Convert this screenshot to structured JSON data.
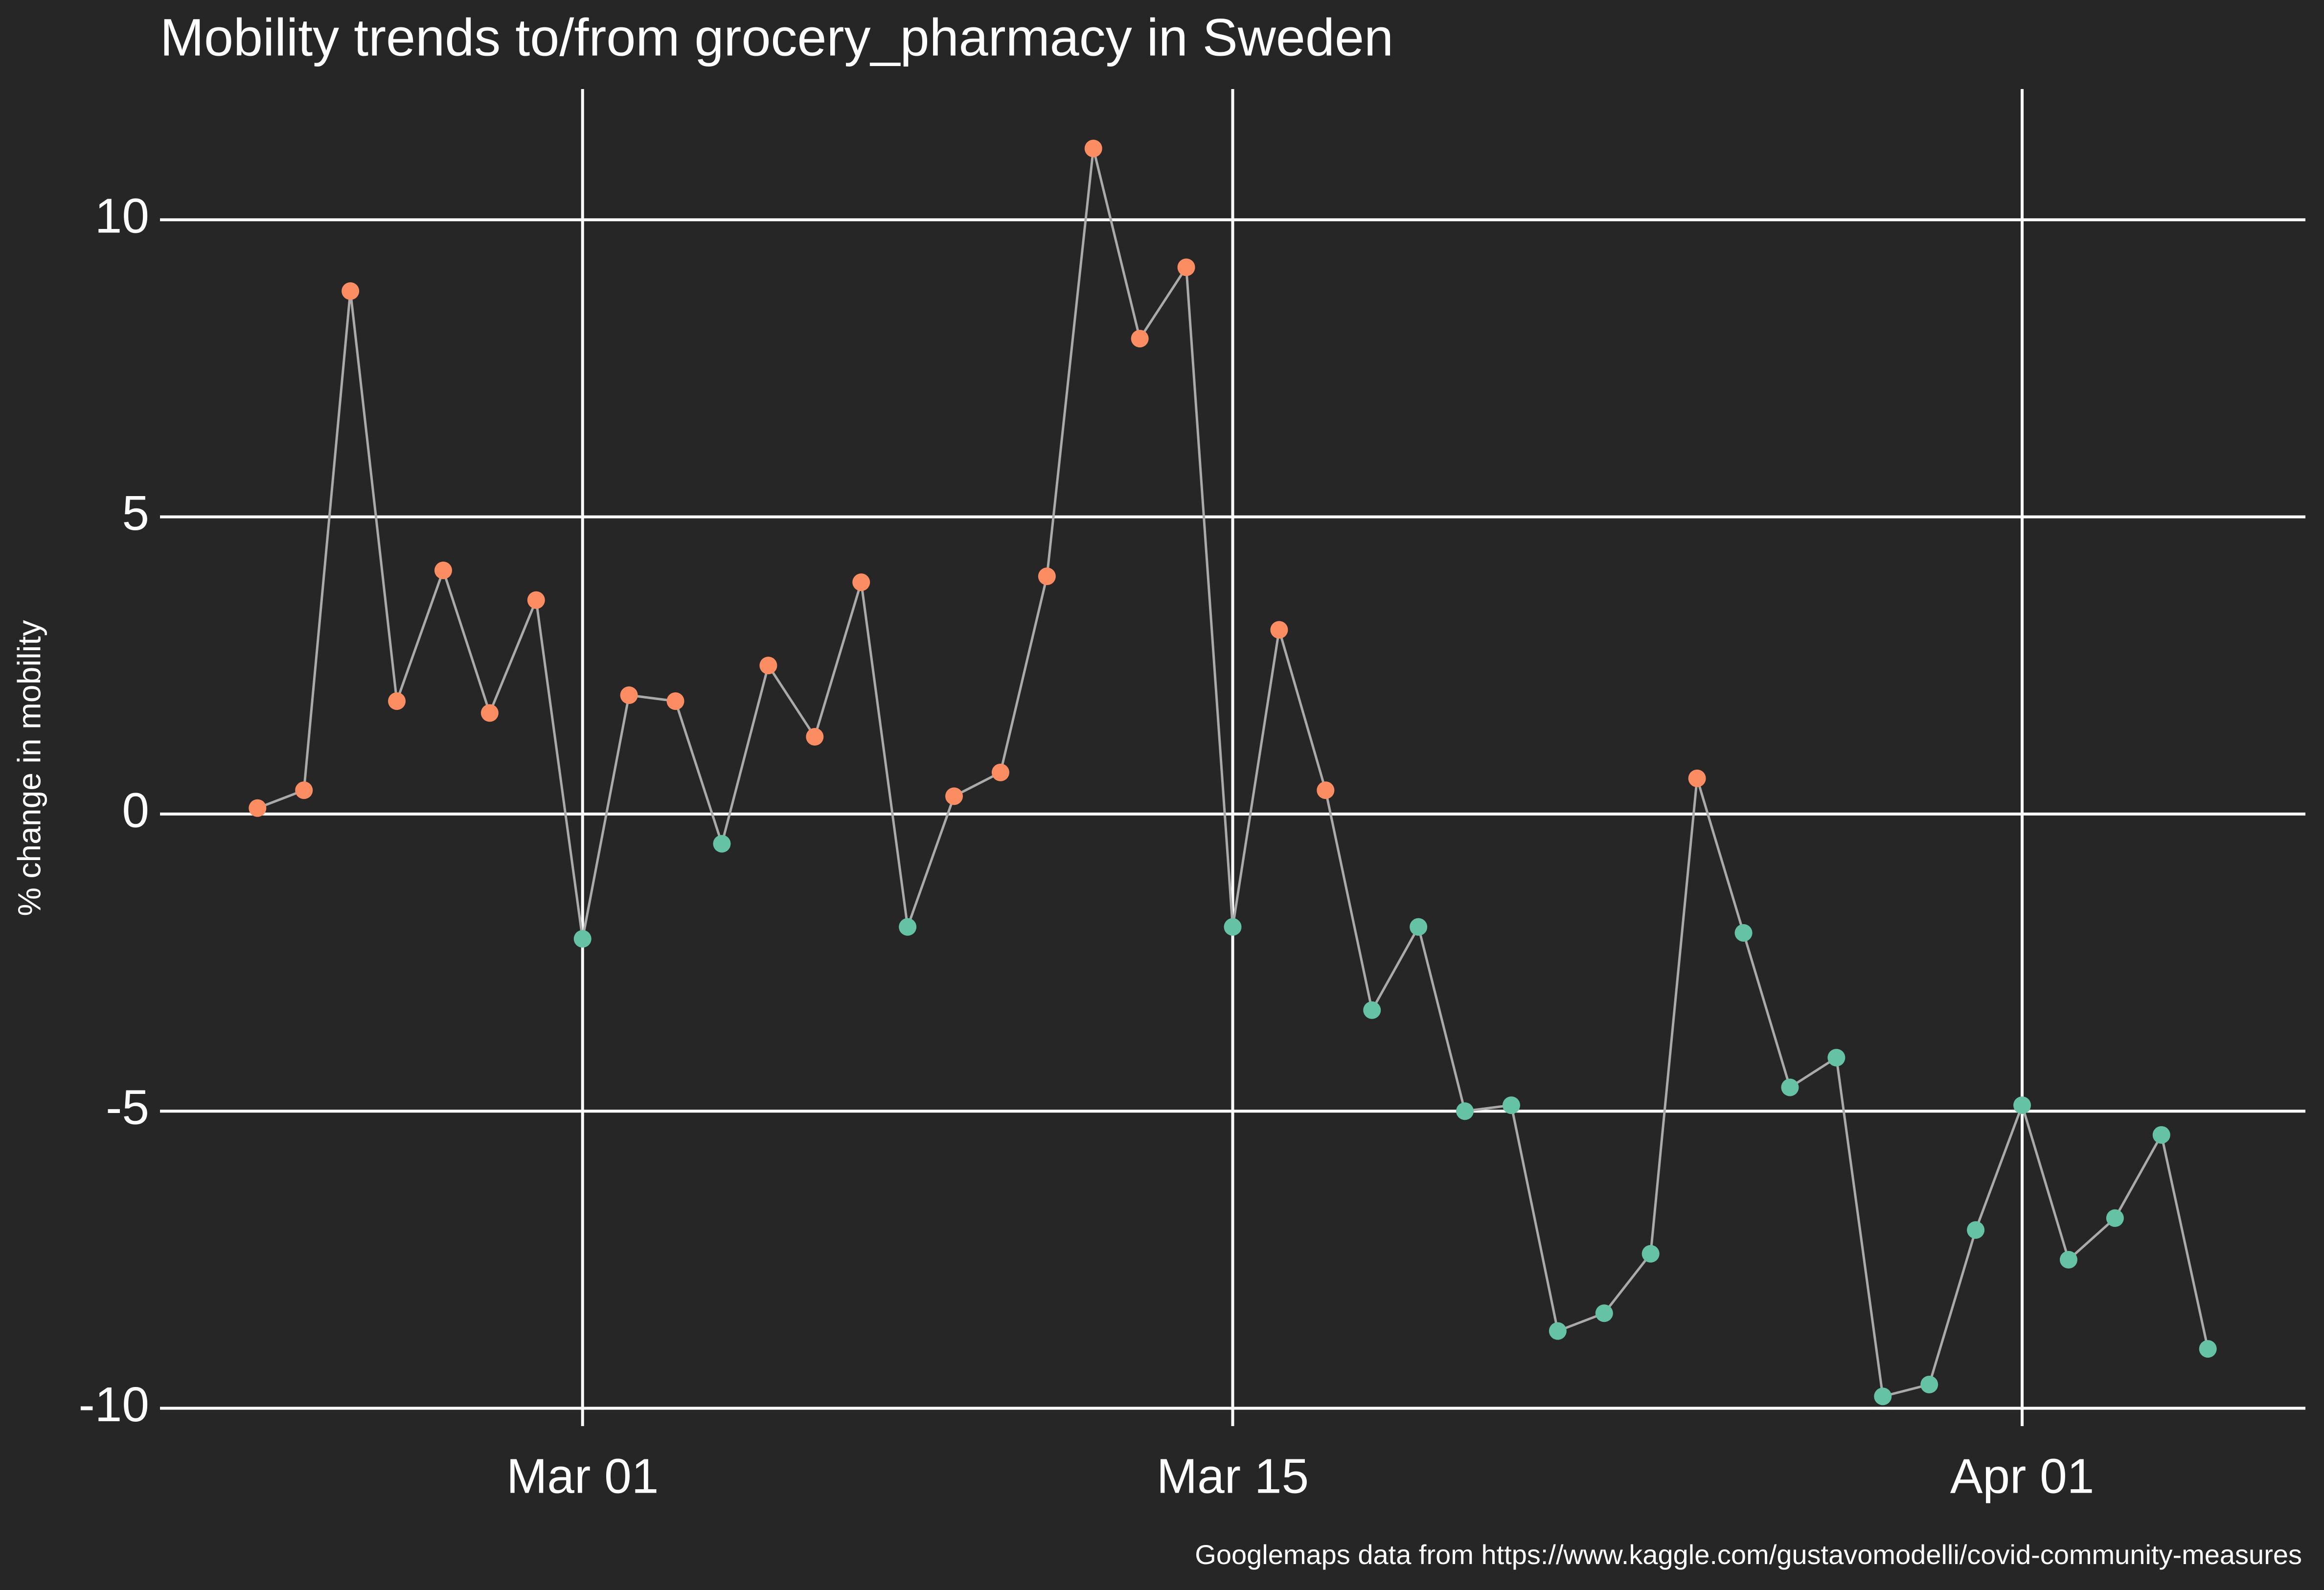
{
  "chart_data": {
    "type": "line",
    "title": "Mobility trends to/from grocery_pharmacy in Sweden",
    "y_label": "% change in mobility",
    "caption": "Googlemaps data from https://www.kaggle.com/gustavomodelli/covid-community-measures",
    "x": [
      "Feb 23",
      "Feb 24",
      "Feb 25",
      "Feb 26",
      "Feb 27",
      "Feb 28",
      "Feb 29",
      "Mar 01",
      "Mar 02",
      "Mar 03",
      "Mar 04",
      "Mar 05",
      "Mar 06",
      "Mar 07",
      "Mar 08",
      "Mar 09",
      "Mar 10",
      "Mar 11",
      "Mar 12",
      "Mar 13",
      "Mar 14",
      "Mar 15",
      "Mar 16",
      "Mar 17",
      "Mar 18",
      "Mar 19",
      "Mar 20",
      "Mar 21",
      "Mar 22",
      "Mar 23",
      "Mar 24",
      "Mar 25",
      "Mar 26",
      "Mar 27",
      "Mar 28",
      "Mar 29",
      "Mar 30",
      "Mar 31",
      "Apr 01",
      "Apr 02",
      "Apr 03",
      "Apr 04",
      "Apr 05"
    ],
    "values": [
      0.1,
      0.4,
      8.8,
      1.9,
      4.1,
      1.7,
      3.6,
      -2.1,
      2.0,
      1.9,
      -0.5,
      2.5,
      1.3,
      3.9,
      -1.9,
      0.3,
      0.7,
      4.0,
      11.2,
      8.0,
      9.2,
      -1.9,
      3.1,
      0.4,
      -3.3,
      -1.9,
      -5.0,
      -4.9,
      -8.7,
      -8.4,
      -7.4,
      0.6,
      -2.0,
      -4.6,
      -4.1,
      -9.8,
      -9.6,
      -7.0,
      -4.9,
      -7.5,
      -6.8,
      -5.4,
      -9.0
    ],
    "xticks": [
      "Mar 01",
      "Mar 15",
      "Apr 01"
    ],
    "ylim": [
      -10.3,
      12.2
    ],
    "yticks": [
      -10,
      -5,
      0,
      5,
      10
    ],
    "grid": true,
    "line_color": "#aaaaaa",
    "colors": {
      "positive": "#fc8d62",
      "negative": "#66c2a5"
    },
    "background": "#262626"
  }
}
